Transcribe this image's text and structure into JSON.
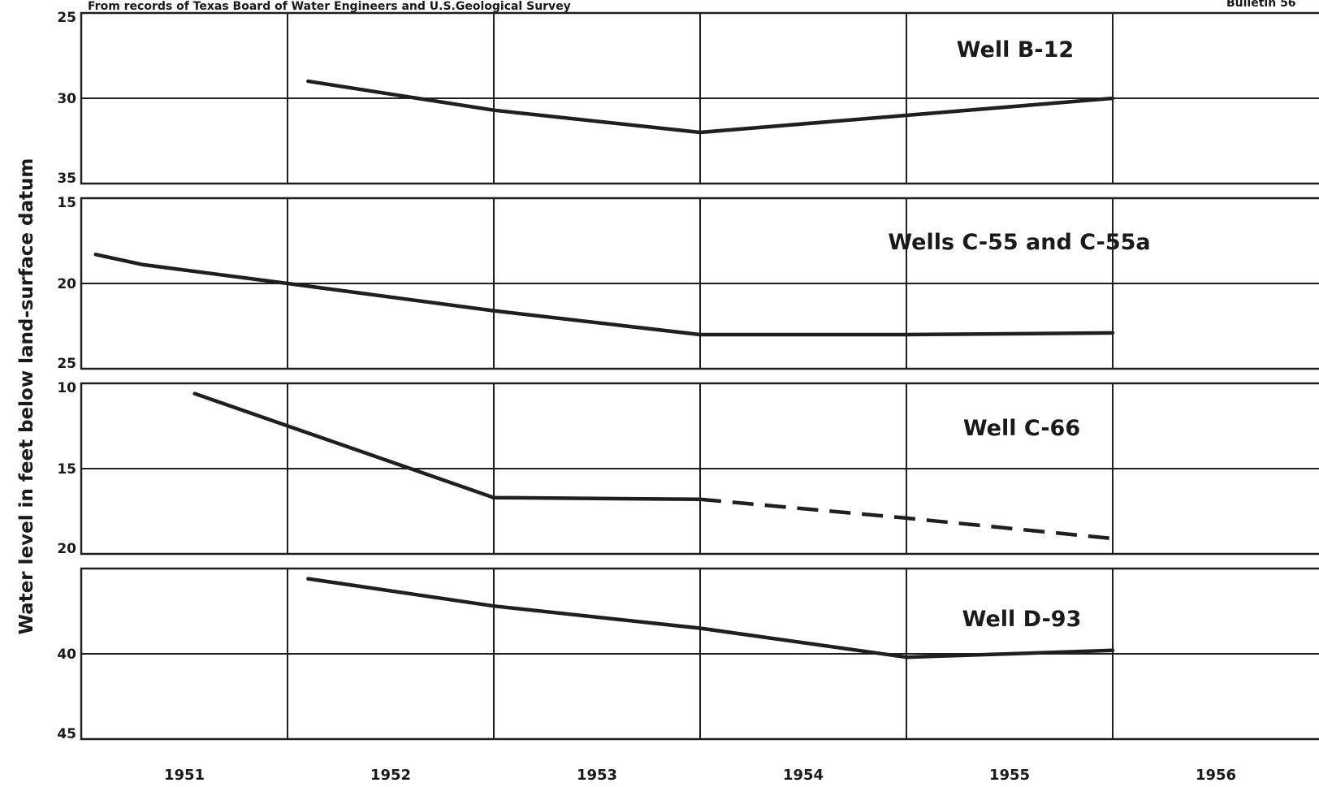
{
  "header": {
    "source_note": "From records of Texas Board of Water Engineers and U.S.Geological Survey",
    "bulletin": "Bulletin 56"
  },
  "y_axis_label": "Water level in feet below land-surface datum",
  "chart_data": [
    {
      "type": "line",
      "title": "Well B-12",
      "ylim": [
        25,
        35
      ],
      "y_inverted": true,
      "yticks": [
        25,
        30,
        35
      ],
      "xlim": [
        1951,
        1957
      ],
      "series": [
        {
          "x": [
            1952.1,
            1953.0,
            1954.0,
            1955.0,
            1956.0
          ],
          "y": [
            29.0,
            30.7,
            32.0,
            31.0,
            30.0
          ]
        }
      ]
    },
    {
      "type": "line",
      "title": "Wells C-55 and C-55a",
      "ylim": [
        15,
        25
      ],
      "y_inverted": true,
      "yticks": [
        15,
        20,
        25
      ],
      "xlim": [
        1951,
        1957
      ],
      "series": [
        {
          "x": [
            1951.07,
            1951.3,
            1952.0,
            1953.0,
            1954.0,
            1955.0,
            1956.0
          ],
          "y": [
            18.3,
            18.9,
            20.0,
            21.6,
            23.0,
            23.0,
            22.9
          ]
        }
      ]
    },
    {
      "type": "line",
      "title": "Well C-66",
      "ylim": [
        10,
        20
      ],
      "y_inverted": true,
      "yticks": [
        10,
        15,
        20
      ],
      "xlim": [
        1951,
        1957
      ],
      "series": [
        {
          "x": [
            1951.55,
            1953.0,
            1954.0
          ],
          "y": [
            10.6,
            16.7,
            16.8
          ]
        },
        {
          "x": [
            1954.0,
            1955.0,
            1956.0
          ],
          "y": [
            16.8,
            17.9,
            19.1
          ],
          "style": "dashed"
        }
      ]
    },
    {
      "type": "line",
      "title": "Well D-93",
      "ylim": [
        35,
        45
      ],
      "y_inverted": true,
      "yticks": [
        40,
        45
      ],
      "xlim": [
        1951,
        1957
      ],
      "series": [
        {
          "x": [
            1952.1,
            1953.0,
            1954.0,
            1955.0,
            1956.0
          ],
          "y": [
            35.6,
            37.2,
            38.5,
            40.2,
            39.8
          ]
        }
      ]
    }
  ],
  "x_tick_labels": [
    "1951",
    "1952",
    "1953",
    "1954",
    "1955",
    "1956"
  ]
}
